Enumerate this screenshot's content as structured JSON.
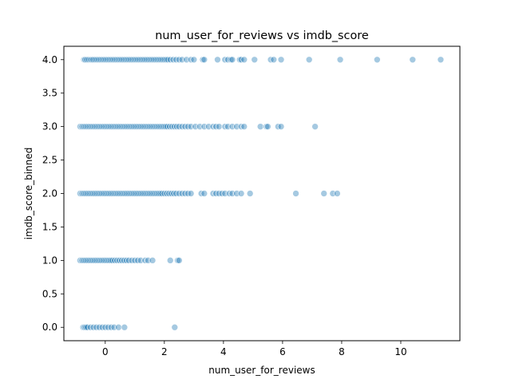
{
  "chart_data": {
    "type": "scatter",
    "title": "num_user_for_reviews vs imdb_score",
    "xlabel": "num_user_for_reviews",
    "ylabel": "imdb_score_binned",
    "xlim": [
      -1.4,
      12.0
    ],
    "ylim": [
      -0.2,
      4.2
    ],
    "x_ticks": [
      0,
      2,
      4,
      6,
      8,
      10
    ],
    "x_tick_labels": [
      "0",
      "2",
      "4",
      "6",
      "8",
      "10"
    ],
    "y_ticks": [
      0.0,
      0.5,
      1.0,
      1.5,
      2.0,
      2.5,
      3.0,
      3.5,
      4.0
    ],
    "y_tick_labels": [
      "0.0",
      "0.5",
      "1.0",
      "1.5",
      "2.0",
      "2.5",
      "3.0",
      "3.5",
      "4.0"
    ],
    "grid": false,
    "legend": "none",
    "marker_color": "#1f77b4",
    "marker_alpha": 0.4,
    "series": [
      {
        "levels": [
          {
            "y": 4.0,
            "x": [
              -0.72,
              -0.68,
              -0.62,
              -0.56,
              -0.5,
              -0.45,
              -0.4,
              -0.34,
              -0.28,
              -0.22,
              -0.16,
              -0.1,
              -0.04,
              0.02,
              0.08,
              0.14,
              0.2,
              0.26,
              0.32,
              0.38,
              0.44,
              0.5,
              0.56,
              0.62,
              0.68,
              0.74,
              0.8,
              0.86,
              0.92,
              0.98,
              1.04,
              1.1,
              1.16,
              1.22,
              1.28,
              1.34,
              1.4,
              1.46,
              1.52,
              1.58,
              1.64,
              1.7,
              1.76,
              1.82,
              1.88,
              1.94,
              2.0,
              2.06,
              2.12,
              2.2,
              2.3,
              2.4,
              2.5,
              2.6,
              2.75,
              2.9,
              3.0,
              3.3,
              3.35,
              3.8,
              4.05,
              4.15,
              4.25,
              4.3,
              4.55,
              4.6,
              4.7,
              5.05,
              5.6,
              5.7,
              5.95,
              6.9,
              7.95,
              9.2,
              10.4,
              11.35
            ]
          },
          {
            "y": 3.0,
            "x": [
              -0.85,
              -0.78,
              -0.72,
              -0.66,
              -0.6,
              -0.54,
              -0.48,
              -0.42,
              -0.36,
              -0.3,
              -0.24,
              -0.18,
              -0.12,
              -0.06,
              0.0,
              0.06,
              0.12,
              0.18,
              0.24,
              0.3,
              0.36,
              0.42,
              0.48,
              0.54,
              0.6,
              0.66,
              0.72,
              0.78,
              0.84,
              0.9,
              0.96,
              1.02,
              1.08,
              1.14,
              1.2,
              1.26,
              1.32,
              1.38,
              1.44,
              1.5,
              1.56,
              1.62,
              1.68,
              1.74,
              1.8,
              1.86,
              1.92,
              1.98,
              2.04,
              2.1,
              2.18,
              2.26,
              2.34,
              2.42,
              2.5,
              2.6,
              2.7,
              2.8,
              2.9,
              3.05,
              3.2,
              3.35,
              3.5,
              3.65,
              3.75,
              3.85,
              4.05,
              4.15,
              4.3,
              4.45,
              4.6,
              4.7,
              5.25,
              5.45,
              5.5,
              5.85,
              5.95,
              7.1
            ]
          },
          {
            "y": 2.0,
            "x": [
              -0.85,
              -0.78,
              -0.72,
              -0.66,
              -0.6,
              -0.54,
              -0.48,
              -0.42,
              -0.36,
              -0.3,
              -0.24,
              -0.18,
              -0.12,
              -0.06,
              0.0,
              0.06,
              0.12,
              0.18,
              0.24,
              0.3,
              0.36,
              0.42,
              0.48,
              0.54,
              0.6,
              0.66,
              0.72,
              0.78,
              0.84,
              0.9,
              0.96,
              1.02,
              1.08,
              1.14,
              1.2,
              1.26,
              1.32,
              1.38,
              1.44,
              1.5,
              1.56,
              1.62,
              1.68,
              1.74,
              1.8,
              1.86,
              1.92,
              2.0,
              2.08,
              2.16,
              2.24,
              2.32,
              2.4,
              2.5,
              2.6,
              2.7,
              2.8,
              2.9,
              3.25,
              3.35,
              3.65,
              3.75,
              3.85,
              3.95,
              4.05,
              4.2,
              4.3,
              4.45,
              4.6,
              4.9,
              6.45,
              7.4,
              7.7,
              7.85
            ]
          },
          {
            "y": 1.0,
            "x": [
              -0.85,
              -0.78,
              -0.72,
              -0.66,
              -0.6,
              -0.54,
              -0.48,
              -0.42,
              -0.36,
              -0.3,
              -0.24,
              -0.18,
              -0.12,
              -0.06,
              0.0,
              0.06,
              0.12,
              0.18,
              0.24,
              0.32,
              0.4,
              0.48,
              0.56,
              0.64,
              0.72,
              0.8,
              0.9,
              1.0,
              1.1,
              1.2,
              1.35,
              1.45,
              1.6,
              2.2,
              2.45,
              2.5
            ]
          },
          {
            "y": 0.0,
            "x": [
              -0.75,
              -0.7,
              -0.65,
              -0.6,
              -0.5,
              -0.4,
              -0.3,
              -0.2,
              -0.1,
              0.0,
              0.1,
              0.2,
              0.3,
              0.45,
              0.65,
              2.35
            ]
          }
        ]
      }
    ]
  }
}
